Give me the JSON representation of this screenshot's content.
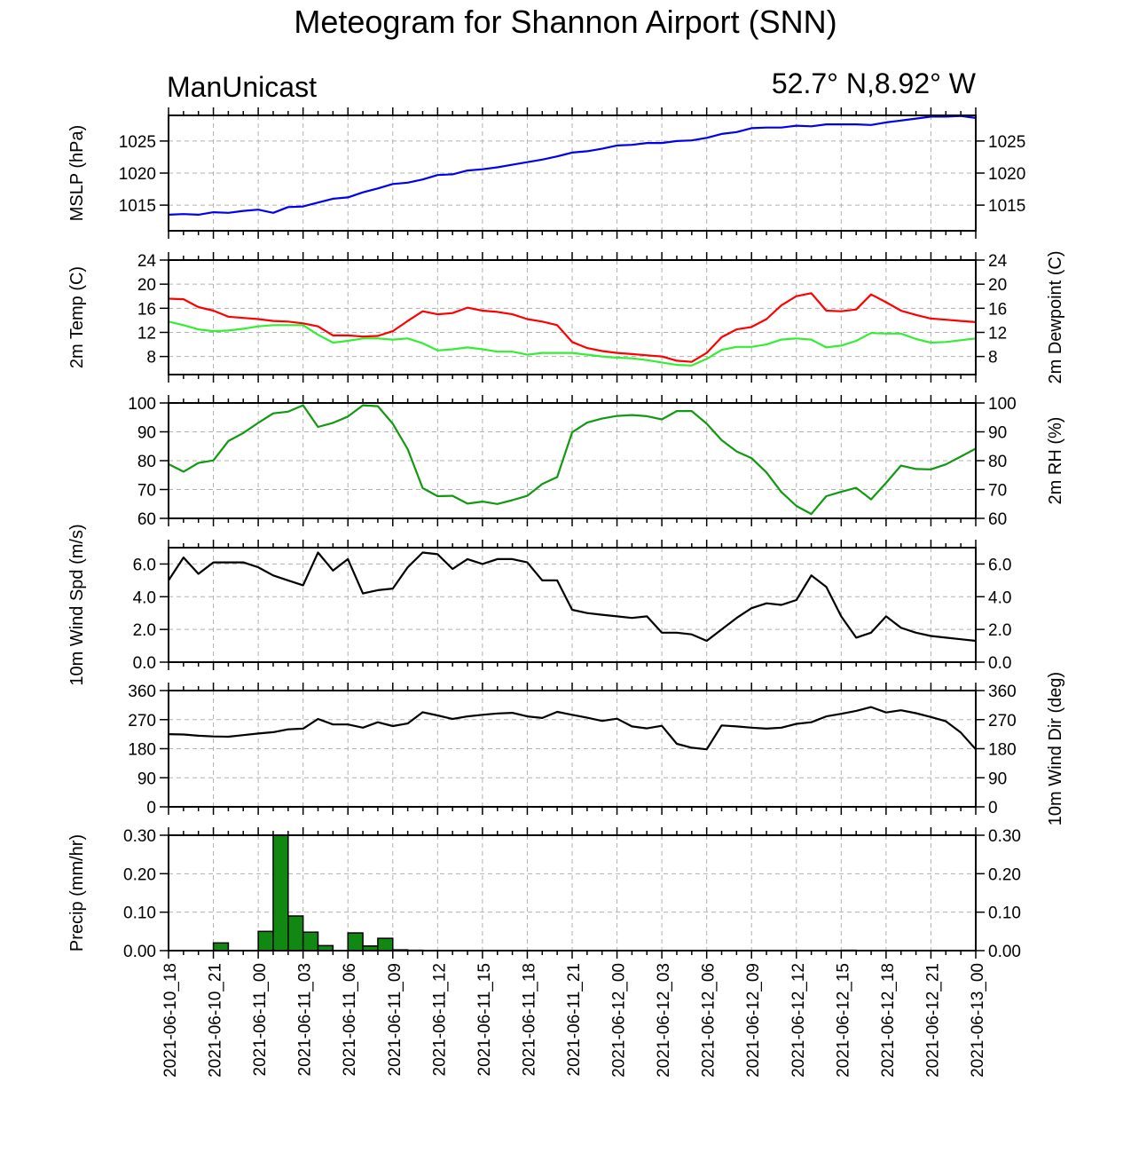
{
  "title": "Meteogram for Shannon Airport (SNN)",
  "model": "ManUnicast",
  "coords": "52.7° N,8.92° W",
  "x_tick_labels": [
    "2021-06-10_18",
    "2021-06-10_21",
    "2021-06-11_00",
    "2021-06-11_03",
    "2021-06-11_06",
    "2021-06-11_09",
    "2021-06-11_12",
    "2021-06-11_15",
    "2021-06-11_18",
    "2021-06-11_21",
    "2021-06-12_00",
    "2021-06-12_03",
    "2021-06-12_06",
    "2021-06-12_09",
    "2021-06-12_12",
    "2021-06-12_15",
    "2021-06-12_18",
    "2021-06-12_21",
    "2021-06-13_00"
  ],
  "colors": {
    "mslp": "#0000ee",
    "temp": "#ff0000",
    "dewpoint": "#33ee33",
    "rh": "#119911",
    "wind": "#000000",
    "precip_fill": "#118811",
    "grid": "#b0b0b0"
  },
  "chart_data": [
    {
      "type": "line",
      "ylabel": "MSLP (hPa)",
      "ylim": [
        1011,
        1029
      ],
      "yticks": [
        1015,
        1020,
        1025
      ],
      "ytick_labels": [
        "1015",
        "1020",
        "1025"
      ],
      "x_hours": [
        0,
        1,
        2,
        3,
        4,
        5,
        6,
        7,
        8,
        9,
        10,
        11,
        12,
        13,
        14,
        15,
        16,
        17,
        18,
        19,
        20,
        21,
        22,
        23,
        24,
        25,
        26,
        27,
        28,
        29,
        30,
        31,
        32,
        33,
        34,
        35,
        36,
        37,
        38,
        39,
        40,
        41,
        42,
        43,
        44,
        45,
        46,
        47,
        48,
        49,
        50,
        51,
        52,
        53,
        54
      ],
      "series": [
        {
          "color_key": "mslp",
          "values": [
            1013.5,
            1013.6,
            1013.5,
            1013.9,
            1013.8,
            1014.1,
            1014.3,
            1013.8,
            1014.7,
            1014.8,
            1015.4,
            1016.0,
            1016.2,
            1017.0,
            1017.6,
            1018.3,
            1018.5,
            1019.0,
            1019.7,
            1019.8,
            1020.4,
            1020.6,
            1020.9,
            1021.3,
            1021.7,
            1022.1,
            1022.6,
            1023.2,
            1023.4,
            1023.8,
            1024.3,
            1024.4,
            1024.7,
            1024.7,
            1025.0,
            1025.1,
            1025.5,
            1026.1,
            1026.4,
            1027.0,
            1027.1,
            1027.1,
            1027.4,
            1027.3,
            1027.6,
            1027.6,
            1027.6,
            1027.5,
            1027.9,
            1028.2,
            1028.5,
            1028.8,
            1028.8,
            1028.9,
            1028.6
          ]
        }
      ]
    },
    {
      "type": "line",
      "ylabel": "2m Temp (C)",
      "ylabel_right": "2m Dewpoint (C)",
      "ylim": [
        5,
        24
      ],
      "yticks": [
        8,
        12,
        16,
        20,
        24
      ],
      "ytick_labels": [
        "8",
        "12",
        "16",
        "20",
        "24"
      ],
      "x_hours": [
        0,
        1,
        2,
        3,
        4,
        5,
        6,
        7,
        8,
        9,
        10,
        11,
        12,
        13,
        14,
        15,
        16,
        17,
        18,
        19,
        20,
        21,
        22,
        23,
        24,
        25,
        26,
        27,
        28,
        29,
        30,
        31,
        32,
        33,
        34,
        35,
        36,
        37,
        38,
        39,
        40,
        41,
        42,
        43,
        44,
        45,
        46,
        47,
        48,
        49,
        50,
        51,
        52,
        53,
        54
      ],
      "series": [
        {
          "color_key": "temp",
          "values": [
            17.6,
            17.5,
            16.2,
            15.6,
            14.6,
            14.4,
            14.2,
            13.9,
            13.8,
            13.5,
            13.0,
            11.5,
            11.5,
            11.3,
            11.4,
            12.2,
            13.9,
            15.5,
            15.0,
            15.2,
            16.1,
            15.6,
            15.4,
            15.0,
            14.2,
            13.8,
            13.2,
            10.4,
            9.4,
            8.9,
            8.6,
            8.4,
            8.2,
            8.0,
            7.3,
            7.1,
            8.6,
            11.2,
            12.5,
            12.9,
            14.2,
            16.5,
            18.0,
            18.5,
            15.6,
            15.5,
            15.8,
            18.3,
            17.0,
            15.6,
            14.9,
            14.3,
            14.1,
            13.9,
            13.7
          ]
        },
        {
          "color_key": "dewpoint",
          "values": [
            13.8,
            13.2,
            12.5,
            12.2,
            12.3,
            12.6,
            13.0,
            13.2,
            13.2,
            13.2,
            11.6,
            10.3,
            10.6,
            11.0,
            11.0,
            10.8,
            11.0,
            10.2,
            9.0,
            9.2,
            9.5,
            9.2,
            8.8,
            8.8,
            8.3,
            8.6,
            8.6,
            8.6,
            8.3,
            8.0,
            7.8,
            7.7,
            7.4,
            7.0,
            6.6,
            6.5,
            7.6,
            9.1,
            9.6,
            9.6,
            10.0,
            10.8,
            11.0,
            10.8,
            9.5,
            9.8,
            10.6,
            11.9,
            11.8,
            11.8,
            10.9,
            10.3,
            10.4,
            10.7,
            11.0
          ]
        }
      ]
    },
    {
      "type": "line",
      "ylabel": "",
      "ylabel_right": "2m RH (%)",
      "ylim": [
        60,
        100
      ],
      "yticks": [
        60,
        70,
        80,
        90,
        100
      ],
      "ytick_labels": [
        "60",
        "70",
        "80",
        "90",
        "100"
      ],
      "x_hours": [
        0,
        1,
        2,
        3,
        4,
        5,
        6,
        7,
        8,
        9,
        10,
        11,
        12,
        13,
        14,
        15,
        16,
        17,
        18,
        19,
        20,
        21,
        22,
        23,
        24,
        25,
        26,
        27,
        28,
        29,
        30,
        31,
        32,
        33,
        34,
        35,
        36,
        37,
        38,
        39,
        40,
        41,
        42,
        43,
        44,
        45,
        46,
        47,
        48,
        49,
        50,
        51,
        52,
        53,
        54
      ],
      "series": [
        {
          "color_key": "rh",
          "values": [
            78.8,
            76.2,
            79.2,
            80.1,
            86.8,
            89.6,
            93.1,
            96.4,
            97.0,
            99.2,
            91.7,
            93.1,
            95.3,
            99.2,
            98.9,
            92.8,
            84.0,
            70.5,
            67.7,
            67.8,
            65.1,
            65.8,
            65.0,
            66.3,
            67.8,
            71.9,
            74.3,
            89.8,
            93.2,
            94.6,
            95.5,
            95.8,
            95.4,
            94.3,
            97.2,
            97.2,
            92.8,
            87.1,
            83.2,
            80.9,
            75.9,
            69.1,
            64.3,
            61.5,
            67.7,
            69.2,
            70.6,
            66.6,
            72.3,
            78.3,
            77.1,
            77.0,
            78.7,
            81.4,
            84.2
          ]
        }
      ]
    },
    {
      "type": "line",
      "ylabel": "10m Wind Spd (m/s)",
      "ylim": [
        0,
        7
      ],
      "yticks": [
        0,
        2,
        4,
        6
      ],
      "ytick_labels": [
        "0.0",
        "2.0",
        "4.0",
        "6.0"
      ],
      "x_hours": [
        0,
        1,
        2,
        3,
        4,
        5,
        6,
        7,
        8,
        9,
        10,
        11,
        12,
        13,
        14,
        15,
        16,
        17,
        18,
        19,
        20,
        21,
        22,
        23,
        24,
        25,
        26,
        27,
        28,
        29,
        30,
        31,
        32,
        33,
        34,
        35,
        36,
        37,
        38,
        39,
        40,
        41,
        42,
        43,
        44,
        45,
        46,
        47,
        48,
        49,
        50,
        51,
        52,
        53,
        54
      ],
      "series": [
        {
          "color_key": "wind",
          "values": [
            5.0,
            6.4,
            5.4,
            6.1,
            6.1,
            6.1,
            5.8,
            5.3,
            5.0,
            4.7,
            6.7,
            5.6,
            6.3,
            4.2,
            4.4,
            4.5,
            5.8,
            6.7,
            6.6,
            5.7,
            6.3,
            6.0,
            6.3,
            6.3,
            6.1,
            5.0,
            5.0,
            3.2,
            3.0,
            2.9,
            2.8,
            2.7,
            2.8,
            1.8,
            1.8,
            1.7,
            1.3,
            2.0,
            2.7,
            3.3,
            3.6,
            3.5,
            3.8,
            5.3,
            4.6,
            2.8,
            1.5,
            1.8,
            2.8,
            2.1,
            1.8,
            1.6,
            1.5,
            1.4,
            1.3
          ]
        }
      ]
    },
    {
      "type": "line",
      "ylabel": "",
      "ylabel_right": "10m Wind Dir (deg)",
      "ylim": [
        0,
        360
      ],
      "yticks": [
        0,
        90,
        180,
        270,
        360
      ],
      "ytick_labels": [
        "0",
        "90",
        "180",
        "270",
        "360"
      ],
      "x_hours": [
        0,
        1,
        2,
        3,
        4,
        5,
        6,
        7,
        8,
        9,
        10,
        11,
        12,
        13,
        14,
        15,
        16,
        17,
        18,
        19,
        20,
        21,
        22,
        23,
        24,
        25,
        26,
        27,
        28,
        29,
        30,
        31,
        32,
        33,
        34,
        35,
        36,
        37,
        38,
        39,
        40,
        41,
        42,
        43,
        44,
        45,
        46,
        47,
        48,
        49,
        50,
        51,
        52,
        53,
        54
      ],
      "series": [
        {
          "color_key": "wind",
          "values": [
            225,
            224,
            220,
            218,
            217,
            222,
            227,
            231,
            240,
            242,
            272,
            255,
            255,
            245,
            262,
            250,
            258,
            293,
            283,
            272,
            280,
            285,
            289,
            291,
            280,
            275,
            294,
            285,
            276,
            266,
            273,
            249,
            243,
            251,
            195,
            183,
            178,
            252,
            249,
            245,
            242,
            245,
            257,
            262,
            280,
            288,
            297,
            309,
            292,
            299,
            290,
            278,
            265,
            230,
            178
          ]
        }
      ]
    },
    {
      "type": "bar",
      "ylabel": "Precip (mm/hr)",
      "ylim": [
        0,
        0.3
      ],
      "yticks": [
        0,
        0.1,
        0.2,
        0.3
      ],
      "ytick_labels": [
        "0.00",
        "0.10",
        "0.20",
        "0.30"
      ],
      "x_hours": [
        0,
        1,
        2,
        3,
        4,
        5,
        6,
        7,
        8,
        9,
        10,
        11,
        12,
        13,
        14,
        15,
        16,
        17,
        18,
        19,
        20,
        21,
        22,
        23,
        24,
        25,
        26,
        27,
        28,
        29,
        30,
        31,
        32,
        33,
        34,
        35,
        36,
        37,
        38,
        39,
        40,
        41,
        42,
        43,
        44,
        45,
        46,
        47,
        48,
        49,
        50,
        51,
        52,
        53,
        54
      ],
      "series": [
        {
          "color_key": "precip_fill",
          "values": [
            0,
            0,
            0,
            0.02,
            0,
            0,
            0.05,
            0.3,
            0.09,
            0.048,
            0.013,
            0,
            0.046,
            0.012,
            0.032,
            0.002,
            0.001,
            0,
            0,
            0,
            0,
            0,
            0,
            0,
            0,
            0,
            0,
            0,
            0,
            0,
            0,
            0,
            0,
            0,
            0,
            0,
            0,
            0,
            0,
            0,
            0,
            0,
            0,
            0,
            0,
            0.001,
            0,
            0,
            0,
            0,
            0,
            0,
            0,
            0,
            0
          ]
        }
      ]
    }
  ]
}
